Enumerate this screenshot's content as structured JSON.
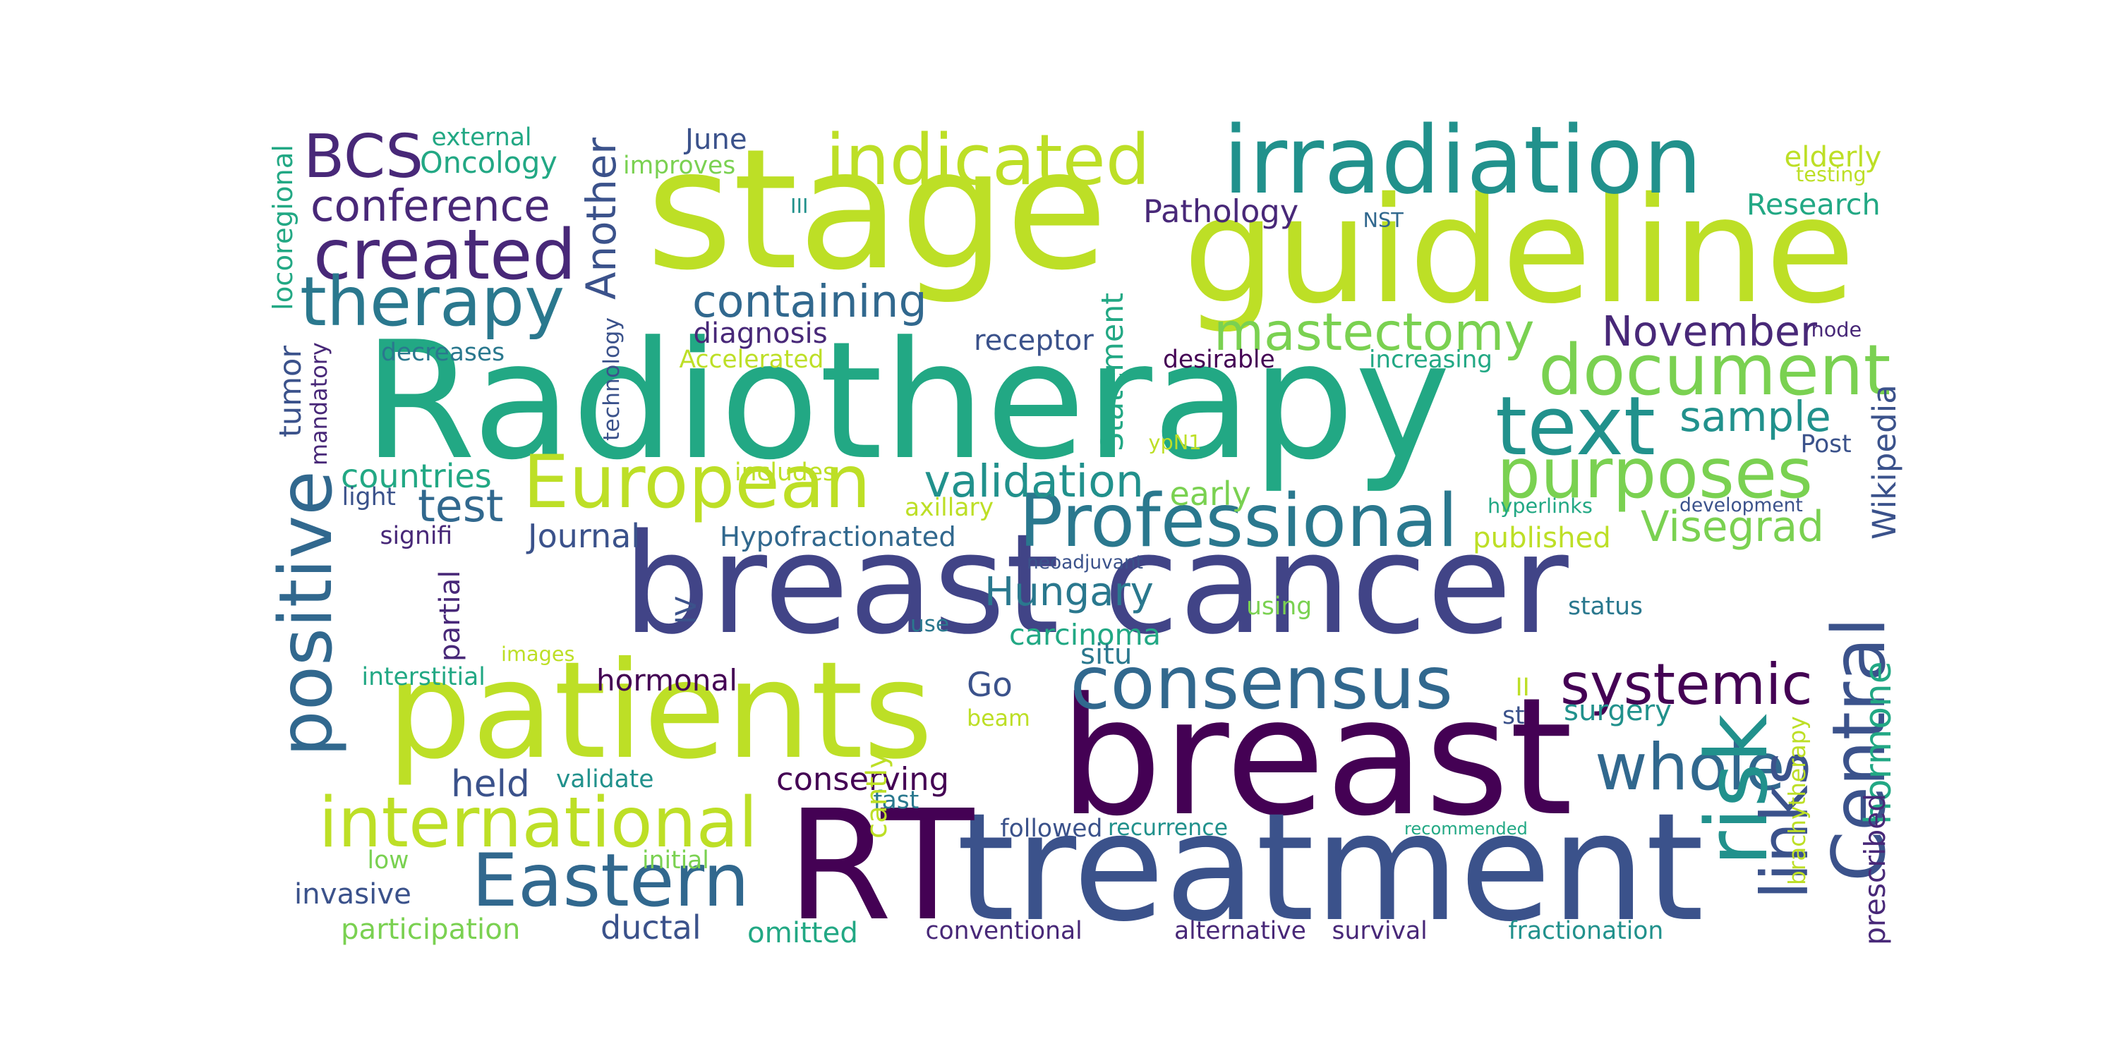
{
  "words": [
    {
      "text": "breast cancer",
      "color": "#414487"
    },
    {
      "text": "Radiotherapy",
      "color": "#22a884"
    },
    {
      "text": "stage",
      "color": "#bddf26"
    },
    {
      "text": "guideline",
      "color": "#bddf26"
    },
    {
      "text": "breast",
      "color": "#440154"
    },
    {
      "text": "treatment",
      "color": "#3b528b"
    },
    {
      "text": "RT",
      "color": "#440154"
    },
    {
      "text": "patients",
      "color": "#bddf26"
    },
    {
      "text": "irradiation",
      "color": "#21918c"
    },
    {
      "text": "consensus",
      "color": "#31688e"
    },
    {
      "text": "Central",
      "color": "#3b528b"
    },
    {
      "text": "purposes",
      "color": "#7ad151"
    },
    {
      "text": "document",
      "color": "#7ad151"
    },
    {
      "text": "text",
      "color": "#21918c"
    },
    {
      "text": "European",
      "color": "#bddf26"
    },
    {
      "text": "Professional",
      "color": "#2a788e"
    },
    {
      "text": "international",
      "color": "#bddf26"
    },
    {
      "text": "Eastern",
      "color": "#31688e"
    },
    {
      "text": "positive",
      "color": "#31688e"
    },
    {
      "text": "whole",
      "color": "#31688e"
    },
    {
      "text": "risk",
      "color": "#21918c"
    },
    {
      "text": "indicated",
      "color": "#bddf26"
    },
    {
      "text": "mastectomy",
      "color": "#7ad151"
    },
    {
      "text": "created",
      "color": "#482878"
    },
    {
      "text": "therapy",
      "color": "#2a788e"
    },
    {
      "text": "BCS",
      "color": "#482878"
    },
    {
      "text": "systemic",
      "color": "#440154"
    },
    {
      "text": "links",
      "color": "#3b528b"
    },
    {
      "text": "Hungary",
      "color": "#2a788e"
    },
    {
      "text": "Visegrad",
      "color": "#7ad151"
    },
    {
      "text": "validation",
      "color": "#21918c"
    },
    {
      "text": "containing",
      "color": "#31688e"
    },
    {
      "text": "November",
      "color": "#482878"
    },
    {
      "text": "sample",
      "color": "#21918c"
    },
    {
      "text": "Wikipedia",
      "color": "#3b528b"
    },
    {
      "text": "Another",
      "color": "#3b528b"
    },
    {
      "text": "conference",
      "color": "#482878"
    },
    {
      "text": "Go",
      "color": "#3b528b"
    },
    {
      "text": "test",
      "color": "#31688e"
    },
    {
      "text": "held",
      "color": "#3b528b"
    },
    {
      "text": "Statement",
      "color": "#22a884"
    },
    {
      "text": "hormone",
      "color": "#22a884"
    },
    {
      "text": "prescribed",
      "color": "#482878"
    },
    {
      "text": "Oncology",
      "color": "#22a884"
    },
    {
      "text": "Research",
      "color": "#22a884"
    },
    {
      "text": "Pathology",
      "color": "#482878"
    },
    {
      "text": "diagnosis",
      "color": "#482878"
    },
    {
      "text": "receptor",
      "color": "#3b528b"
    },
    {
      "text": "tumor",
      "color": "#3b528b"
    },
    {
      "text": "countries",
      "color": "#22a884"
    },
    {
      "text": "Journal",
      "color": "#3b528b"
    },
    {
      "text": "Hypofractionated",
      "color": "#31688e"
    },
    {
      "text": "published",
      "color": "#bddf26"
    },
    {
      "text": "carcinoma",
      "color": "#22a884"
    },
    {
      "text": "situ",
      "color": "#2a788e"
    },
    {
      "text": "hormonal",
      "color": "#440154"
    },
    {
      "text": "conserving",
      "color": "#440154"
    },
    {
      "text": "invasive",
      "color": "#3b528b"
    },
    {
      "text": "ductal",
      "color": "#3b528b"
    },
    {
      "text": "participation",
      "color": "#7ad151"
    },
    {
      "text": "omitted",
      "color": "#22a884"
    },
    {
      "text": "early",
      "color": "#7ad151"
    },
    {
      "text": "surgery",
      "color": "#21918c"
    },
    {
      "text": "st",
      "color": "#3b528b"
    },
    {
      "text": "II",
      "color": "#bddf26"
    },
    {
      "text": "elderly",
      "color": "#bddf26"
    },
    {
      "text": "June",
      "color": "#3b528b"
    },
    {
      "text": "external",
      "color": "#22a884"
    },
    {
      "text": "improves",
      "color": "#7ad151"
    },
    {
      "text": "testing",
      "color": "#bddf26"
    },
    {
      "text": "locoregional",
      "color": "#22a884"
    },
    {
      "text": "III",
      "color": "#21918c"
    },
    {
      "text": "NST",
      "color": "#31688e"
    },
    {
      "text": "node",
      "color": "#482878"
    },
    {
      "text": "technology",
      "color": "#3b528b"
    },
    {
      "text": "Accelerated",
      "color": "#bddf26"
    },
    {
      "text": "decreases",
      "color": "#2a788e"
    },
    {
      "text": "desirable",
      "color": "#440154"
    },
    {
      "text": "increasing",
      "color": "#22a884"
    },
    {
      "text": "mandatory",
      "color": "#482878"
    },
    {
      "text": "ypN1",
      "color": "#bddf26"
    },
    {
      "text": "Post",
      "color": "#3b528b"
    },
    {
      "text": "includes",
      "color": "#bddf26"
    },
    {
      "text": "light",
      "color": "#3b528b"
    },
    {
      "text": "axillary",
      "color": "#bddf26"
    },
    {
      "text": "hyperlinks",
      "color": "#22a884"
    },
    {
      "text": "development",
      "color": "#3b528b"
    },
    {
      "text": "signifi",
      "color": "#482878"
    },
    {
      "text": "neoadjuvant",
      "color": "#3b528b"
    },
    {
      "text": "partial",
      "color": "#482878"
    },
    {
      "text": "IV",
      "color": "#3b528b"
    },
    {
      "text": "using",
      "color": "#7ad151"
    },
    {
      "text": "status",
      "color": "#2a788e"
    },
    {
      "text": "use",
      "color": "#2a788e"
    },
    {
      "text": "images",
      "color": "#bddf26"
    },
    {
      "text": "interstitial",
      "color": "#22a884"
    },
    {
      "text": "beam",
      "color": "#bddf26"
    },
    {
      "text": "validate",
      "color": "#21918c"
    },
    {
      "text": "fast",
      "color": "#2a788e"
    },
    {
      "text": "cantly",
      "color": "#bddf26"
    },
    {
      "text": "brachytherapy",
      "color": "#bddf26"
    },
    {
      "text": "followed",
      "color": "#3b528b"
    },
    {
      "text": "recurrence",
      "color": "#21918c"
    },
    {
      "text": "recommended",
      "color": "#22a884"
    },
    {
      "text": "low",
      "color": "#7ad151"
    },
    {
      "text": "initial",
      "color": "#7ad151"
    },
    {
      "text": "conventional",
      "color": "#482878"
    },
    {
      "text": "alternative",
      "color": "#482878"
    },
    {
      "text": "survival",
      "color": "#482878"
    },
    {
      "text": "fractionation",
      "color": "#21918c"
    }
  ]
}
